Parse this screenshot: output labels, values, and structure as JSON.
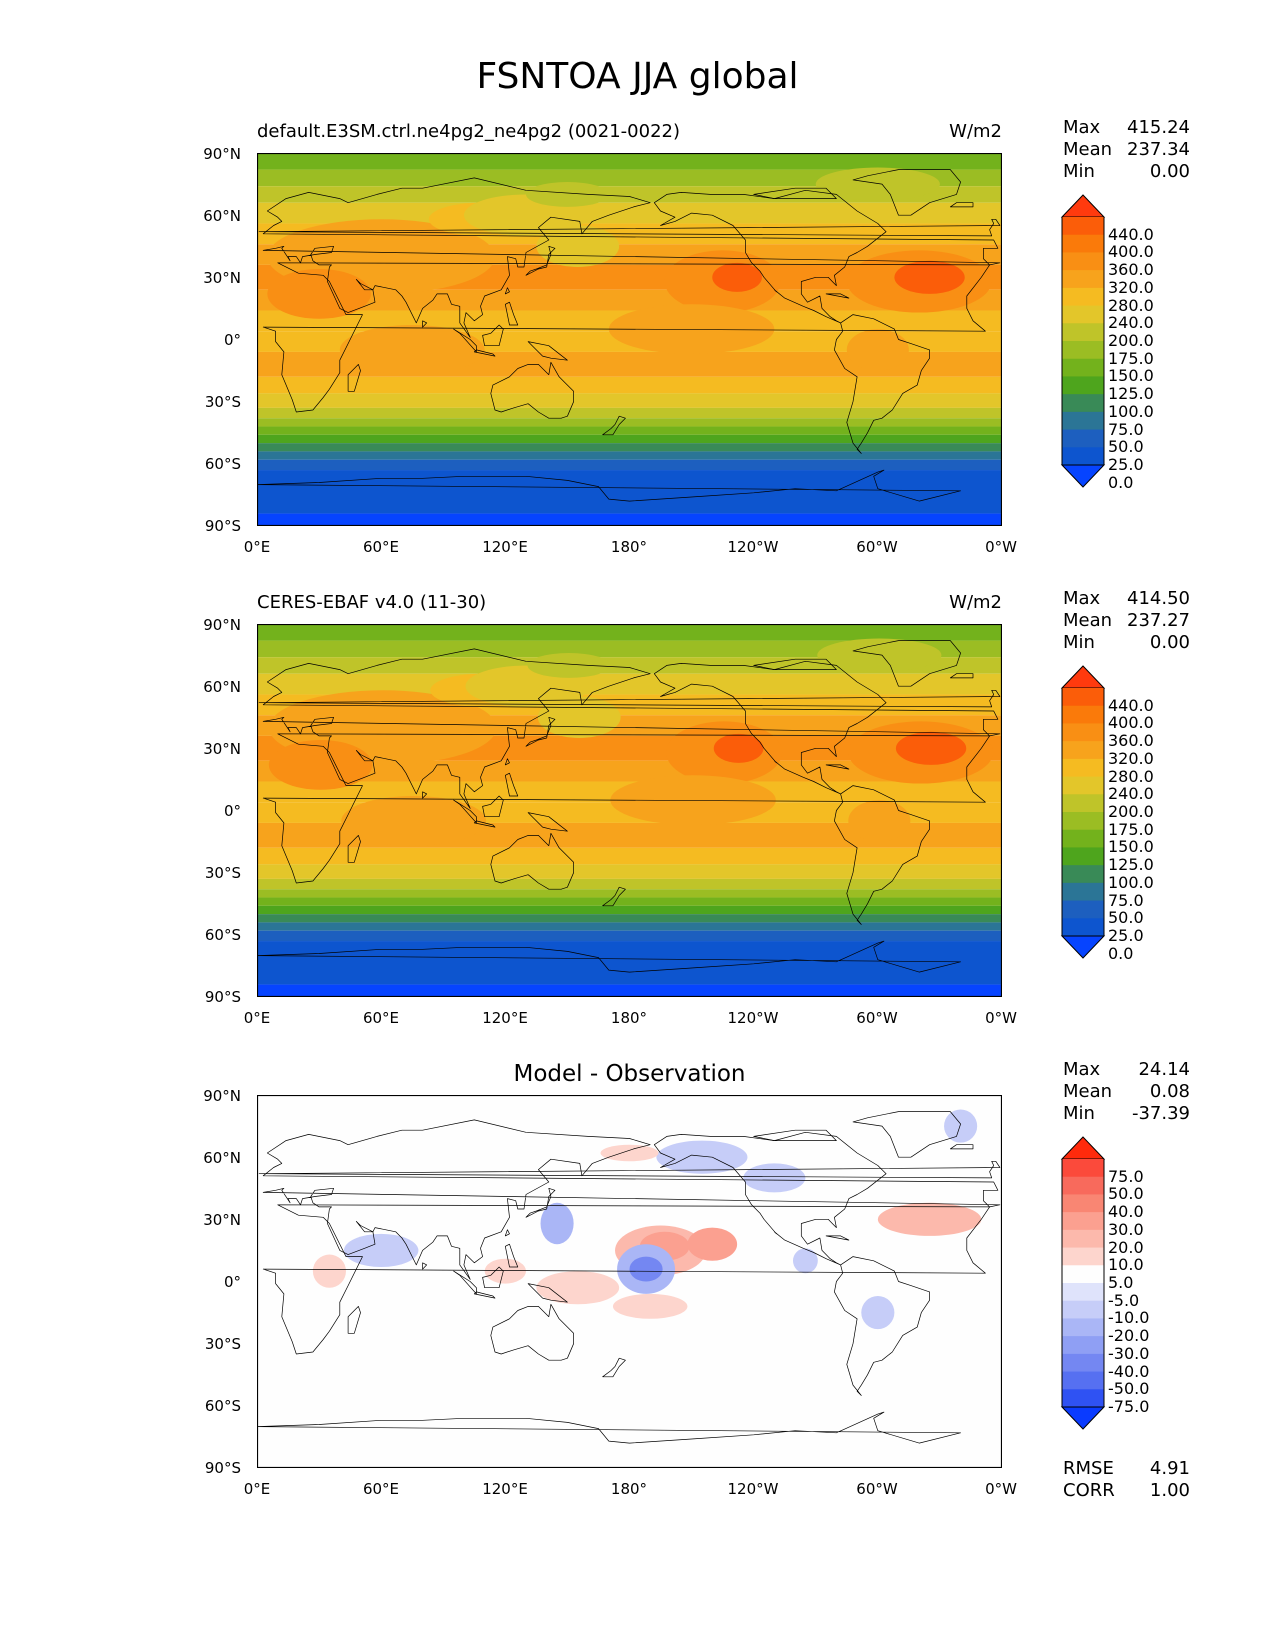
{
  "figure": {
    "title": "FSNTOA JJA global"
  },
  "axes": {
    "y_ticks": [
      "90°N",
      "60°N",
      "30°N",
      "0°",
      "30°S",
      "60°S",
      "90°S"
    ],
    "x_ticks": [
      "0°E",
      "60°E",
      "120°E",
      "180°",
      "120°W",
      "60°W",
      "0°W"
    ]
  },
  "panels": [
    {
      "title": "default.E3SM.ctrl.ne4pg2_ne4pg2 (0021-0022)",
      "units": "W/m2",
      "stats": {
        "max_label": "Max",
        "max": "415.24",
        "mean_label": "Mean",
        "mean": "237.34",
        "min_label": "Min",
        "min": "0.00"
      }
    },
    {
      "title": "CERES-EBAF v4.0 (11-30)",
      "units": "W/m2",
      "stats": {
        "max_label": "Max",
        "max": "414.50",
        "mean_label": "Mean",
        "mean": "237.27",
        "min_label": "Min",
        "min": "0.00"
      }
    },
    {
      "title": "Model - Observation",
      "units": "",
      "stats": {
        "max_label": "Max",
        "max": "24.14",
        "mean_label": "Mean",
        "mean": "0.08",
        "min_label": "Min",
        "min": "-37.39"
      },
      "metrics": {
        "rmse_label": "RMSE",
        "rmse": "4.91",
        "corr_label": "CORR",
        "corr": "1.00"
      }
    }
  ],
  "colorbars": {
    "field": {
      "levels": [
        "440.0",
        "400.0",
        "360.0",
        "320.0",
        "280.0",
        "240.0",
        "200.0",
        "175.0",
        "150.0",
        "125.0",
        "100.0",
        "75.0",
        "50.0",
        "25.0",
        "0.0"
      ],
      "colors": [
        "#ff3a0e",
        "#fb5d09",
        "#fa7a0a",
        "#f98f14",
        "#f7a31c",
        "#f5bb21",
        "#e3c62a",
        "#bfc429",
        "#9bbd23",
        "#73b21c",
        "#4ea51d",
        "#398a57",
        "#2b7596",
        "#1d5fbf",
        "#0d55cf",
        "#0644ff"
      ]
    },
    "diff": {
      "levels": [
        "75.0",
        "50.0",
        "40.0",
        "30.0",
        "20.0",
        "10.0",
        "5.0",
        "-5.0",
        "-10.0",
        "-20.0",
        "-30.0",
        "-40.0",
        "-50.0",
        "-75.0"
      ],
      "colors": [
        "#ff2a0c",
        "#fb4a3b",
        "#f86a5c",
        "#f98673",
        "#fba090",
        "#fcb9ac",
        "#fdd5cd",
        "#fefefe",
        "#dfe3fb",
        "#c6cdf8",
        "#aab6f6",
        "#8f9ff4",
        "#7487f2",
        "#5670f1",
        "#2f52f3",
        "#0a3bff"
      ]
    }
  },
  "chart_data": [
    {
      "type": "heatmap",
      "title": "default.E3SM.ctrl.ne4pg2_ne4pg2 (0021-0022)",
      "units": "W/m2",
      "x": [
        "0°E",
        "60°E",
        "120°E",
        "180°",
        "120°W",
        "60°W",
        "0°W"
      ],
      "y": [
        "90°N",
        "60°N",
        "30°N",
        "0°",
        "30°S",
        "60°S",
        "90°S"
      ],
      "stats": {
        "max": 415.24,
        "mean": 237.34,
        "min": 0.0
      }
    },
    {
      "type": "heatmap",
      "title": "CERES-EBAF v4.0 (11-30)",
      "units": "W/m2",
      "x": [
        "0°E",
        "60°E",
        "120°E",
        "180°",
        "120°W",
        "60°W",
        "0°W"
      ],
      "y": [
        "90°N",
        "60°N",
        "30°N",
        "0°",
        "30°S",
        "60°S",
        "90°S"
      ],
      "stats": {
        "max": 414.5,
        "mean": 237.27,
        "min": 0.0
      }
    },
    {
      "type": "heatmap",
      "title": "Model - Observation",
      "x": [
        "0°E",
        "60°E",
        "120°E",
        "180°",
        "120°W",
        "60°W",
        "0°W"
      ],
      "y": [
        "90°N",
        "60°N",
        "30°N",
        "0°",
        "30°S",
        "60°S",
        "90°S"
      ],
      "stats": {
        "max": 24.14,
        "mean": 0.08,
        "min": -37.39,
        "rmse": 4.91,
        "corr": 1.0
      }
    }
  ]
}
